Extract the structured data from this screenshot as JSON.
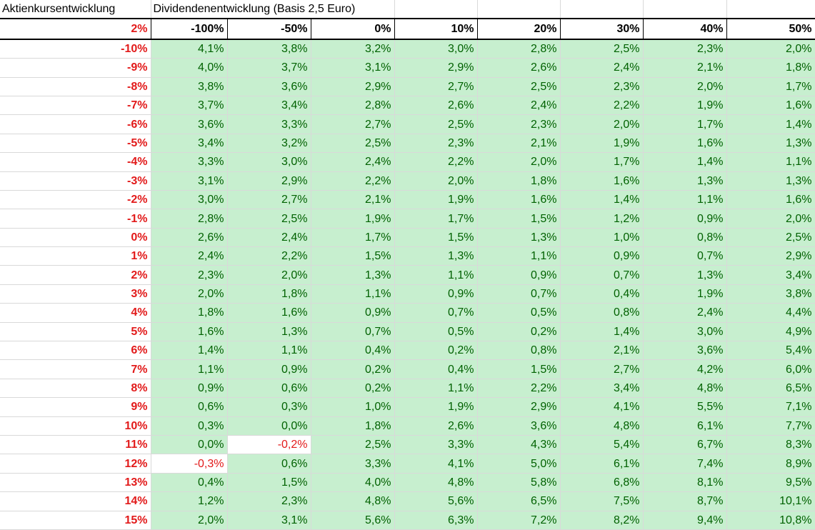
{
  "sheet": {
    "title_left": "Aktienkursentwicklung",
    "title_right": "Dividendenentwicklung (Basis 2,5 Euro)",
    "corner": "2%",
    "columns": [
      "-100%",
      "-50%",
      "0%",
      "10%",
      "20%",
      "30%",
      "40%",
      "50%"
    ],
    "rows": [
      {
        "label": "-10%",
        "values": [
          "4,1%",
          "3,8%",
          "3,2%",
          "3,0%",
          "2,8%",
          "2,5%",
          "2,3%",
          "2,0%"
        ]
      },
      {
        "label": "-9%",
        "values": [
          "4,0%",
          "3,7%",
          "3,1%",
          "2,9%",
          "2,6%",
          "2,4%",
          "2,1%",
          "1,8%"
        ]
      },
      {
        "label": "-8%",
        "values": [
          "3,8%",
          "3,6%",
          "2,9%",
          "2,7%",
          "2,5%",
          "2,3%",
          "2,0%",
          "1,7%"
        ]
      },
      {
        "label": "-7%",
        "values": [
          "3,7%",
          "3,4%",
          "2,8%",
          "2,6%",
          "2,4%",
          "2,2%",
          "1,9%",
          "1,6%"
        ]
      },
      {
        "label": "-6%",
        "values": [
          "3,6%",
          "3,3%",
          "2,7%",
          "2,5%",
          "2,3%",
          "2,0%",
          "1,7%",
          "1,4%"
        ]
      },
      {
        "label": "-5%",
        "values": [
          "3,4%",
          "3,2%",
          "2,5%",
          "2,3%",
          "2,1%",
          "1,9%",
          "1,6%",
          "1,3%"
        ]
      },
      {
        "label": "-4%",
        "values": [
          "3,3%",
          "3,0%",
          "2,4%",
          "2,2%",
          "2,0%",
          "1,7%",
          "1,4%",
          "1,1%"
        ]
      },
      {
        "label": "-3%",
        "values": [
          "3,1%",
          "2,9%",
          "2,2%",
          "2,0%",
          "1,8%",
          "1,6%",
          "1,3%",
          "1,3%"
        ]
      },
      {
        "label": "-2%",
        "values": [
          "3,0%",
          "2,7%",
          "2,1%",
          "1,9%",
          "1,6%",
          "1,4%",
          "1,1%",
          "1,6%"
        ]
      },
      {
        "label": "-1%",
        "values": [
          "2,8%",
          "2,5%",
          "1,9%",
          "1,7%",
          "1,5%",
          "1,2%",
          "0,9%",
          "2,0%"
        ]
      },
      {
        "label": "0%",
        "values": [
          "2,6%",
          "2,4%",
          "1,7%",
          "1,5%",
          "1,3%",
          "1,0%",
          "0,8%",
          "2,5%"
        ]
      },
      {
        "label": "1%",
        "values": [
          "2,4%",
          "2,2%",
          "1,5%",
          "1,3%",
          "1,1%",
          "0,9%",
          "0,7%",
          "2,9%"
        ]
      },
      {
        "label": "2%",
        "values": [
          "2,3%",
          "2,0%",
          "1,3%",
          "1,1%",
          "0,9%",
          "0,7%",
          "1,3%",
          "3,4%"
        ]
      },
      {
        "label": "3%",
        "values": [
          "2,0%",
          "1,8%",
          "1,1%",
          "0,9%",
          "0,7%",
          "0,4%",
          "1,9%",
          "3,8%"
        ]
      },
      {
        "label": "4%",
        "values": [
          "1,8%",
          "1,6%",
          "0,9%",
          "0,7%",
          "0,5%",
          "0,8%",
          "2,4%",
          "4,4%"
        ]
      },
      {
        "label": "5%",
        "values": [
          "1,6%",
          "1,3%",
          "0,7%",
          "0,5%",
          "0,2%",
          "1,4%",
          "3,0%",
          "4,9%"
        ]
      },
      {
        "label": "6%",
        "values": [
          "1,4%",
          "1,1%",
          "0,4%",
          "0,2%",
          "0,8%",
          "2,1%",
          "3,6%",
          "5,4%"
        ]
      },
      {
        "label": "7%",
        "values": [
          "1,1%",
          "0,9%",
          "0,2%",
          "0,4%",
          "1,5%",
          "2,7%",
          "4,2%",
          "6,0%"
        ]
      },
      {
        "label": "8%",
        "values": [
          "0,9%",
          "0,6%",
          "0,2%",
          "1,1%",
          "2,2%",
          "3,4%",
          "4,8%",
          "6,5%"
        ]
      },
      {
        "label": "9%",
        "values": [
          "0,6%",
          "0,3%",
          "1,0%",
          "1,9%",
          "2,9%",
          "4,1%",
          "5,5%",
          "7,1%"
        ]
      },
      {
        "label": "10%",
        "values": [
          "0,3%",
          "0,0%",
          "1,8%",
          "2,6%",
          "3,6%",
          "4,8%",
          "6,1%",
          "7,7%"
        ]
      },
      {
        "label": "11%",
        "values": [
          "0,0%",
          "-0,2%",
          "2,5%",
          "3,3%",
          "4,3%",
          "5,4%",
          "6,7%",
          "8,3%"
        ]
      },
      {
        "label": "12%",
        "values": [
          "-0,3%",
          "0,6%",
          "3,3%",
          "4,1%",
          "5,0%",
          "6,1%",
          "7,4%",
          "8,9%"
        ]
      },
      {
        "label": "13%",
        "values": [
          "0,4%",
          "1,5%",
          "4,0%",
          "4,8%",
          "5,8%",
          "6,8%",
          "8,1%",
          "9,5%"
        ]
      },
      {
        "label": "14%",
        "values": [
          "1,2%",
          "2,3%",
          "4,8%",
          "5,6%",
          "6,5%",
          "7,5%",
          "8,7%",
          "10,1%"
        ]
      },
      {
        "label": "15%",
        "values": [
          "2,0%",
          "3,1%",
          "5,6%",
          "6,3%",
          "7,2%",
          "8,2%",
          "9,4%",
          "10,8%"
        ]
      }
    ]
  },
  "colors": {
    "positive_fill": "#c7efcf",
    "positive_text": "#006100",
    "negative_text": "#e21a1a",
    "row_label": "#e21a1a"
  }
}
